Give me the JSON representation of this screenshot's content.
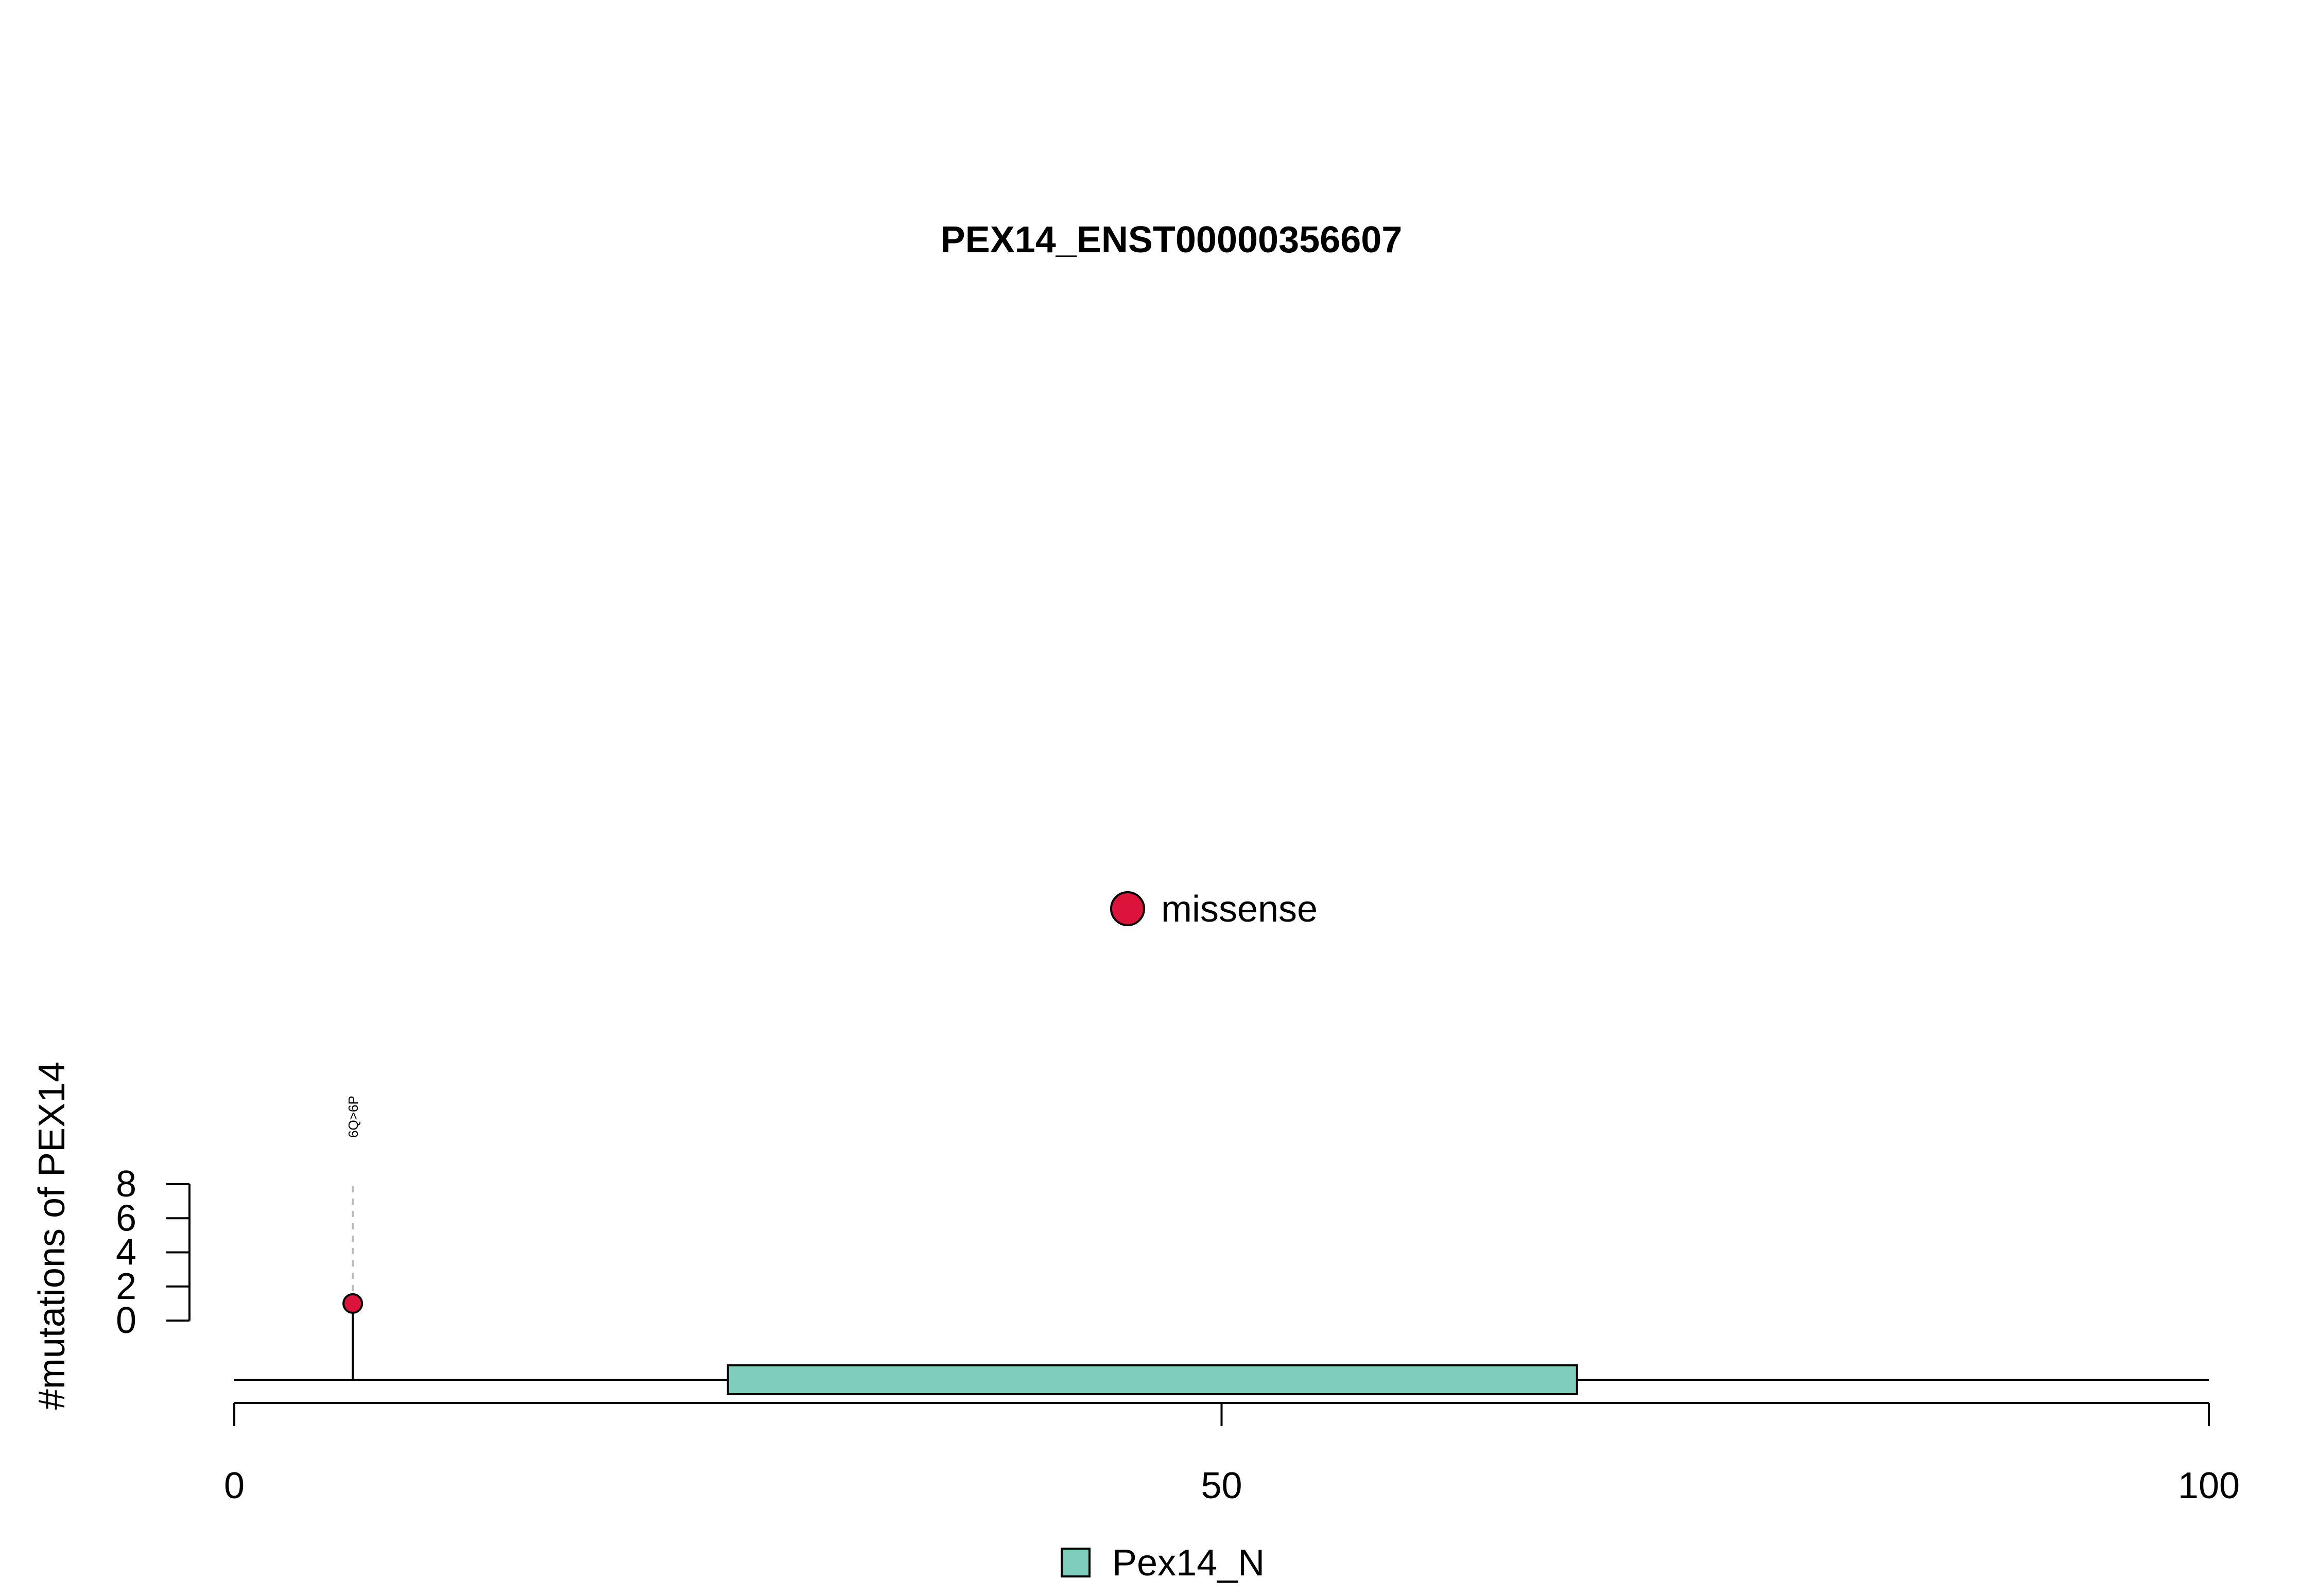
{
  "chart_data": {
    "type": "lollipop",
    "title": "PEX14_ENST00000356607",
    "ylabel": "#mutations of PEX14",
    "xlabel": "",
    "xlim": [
      0,
      100
    ],
    "xticks": [
      0,
      50,
      100
    ],
    "ylim": [
      0,
      8
    ],
    "yticks": [
      0,
      2,
      4,
      6,
      8
    ],
    "legend_top": {
      "label": "missense",
      "color": "#DC143C"
    },
    "mutations": [
      {
        "position": 6,
        "count": 1,
        "label": "6Q>6P",
        "type": "missense",
        "color": "#DC143C"
      }
    ],
    "domains": [
      {
        "name": "Pex14_N",
        "start": 25,
        "end": 68,
        "color": "#7FCDBB"
      }
    ],
    "legend_bottom": {
      "label": "Pex14_N",
      "color": "#7FCDBB"
    },
    "grid": false
  }
}
